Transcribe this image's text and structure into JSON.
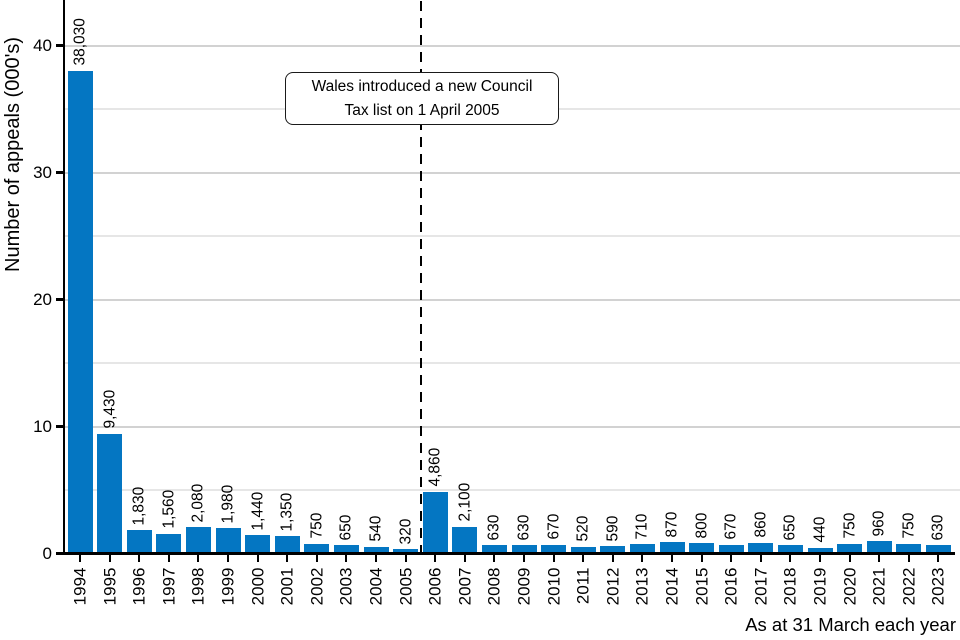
{
  "chart_data": {
    "type": "bar",
    "title": "",
    "ylabel": "Number of appeals (000's)",
    "xlabel": "As at 31 March each year",
    "categories": [
      "1994",
      "1995",
      "1996",
      "1997",
      "1998",
      "1999",
      "2000",
      "2001",
      "2002",
      "2003",
      "2004",
      "2005",
      "2006",
      "2007",
      "2008",
      "2009",
      "2010",
      "2011",
      "2012",
      "2013",
      "2014",
      "2015",
      "2016",
      "2017",
      "2018",
      "2019",
      "2020",
      "2021",
      "2022",
      "2023"
    ],
    "values": [
      38030,
      9430,
      1830,
      1560,
      2080,
      1980,
      1440,
      1350,
      750,
      650,
      540,
      320,
      4860,
      2100,
      630,
      630,
      670,
      520,
      590,
      710,
      870,
      800,
      670,
      860,
      650,
      440,
      750,
      960,
      750,
      630
    ],
    "value_labels": [
      "38,030",
      "9,430",
      "1,830",
      "1,560",
      "2,080",
      "1,980",
      "1,440",
      "1,350",
      "750",
      "650",
      "540",
      "320",
      "4,860",
      "2,100",
      "630",
      "630",
      "670",
      "520",
      "590",
      "710",
      "870",
      "800",
      "670",
      "860",
      "650",
      "440",
      "750",
      "960",
      "750",
      "630"
    ],
    "ylim": [
      0,
      43.5
    ],
    "yticks": [
      "0",
      "10",
      "20",
      "30",
      "40"
    ],
    "ytick_values": [
      0,
      10,
      20,
      30,
      40
    ],
    "minor_gridlines": [
      5,
      15,
      25,
      35
    ],
    "grid": "horizontal",
    "legend": "none",
    "annotation": {
      "line1": "Wales introduced a new Council",
      "line2": "Tax list on 1 April 2005"
    },
    "dashed_line_between": [
      "2005",
      "2006"
    ],
    "colors": {
      "bar": "#0476c2",
      "major_grid": "#d2d2d2",
      "minor_grid": "#e6e6e6",
      "axis": "#000000",
      "text": "#000000"
    }
  }
}
